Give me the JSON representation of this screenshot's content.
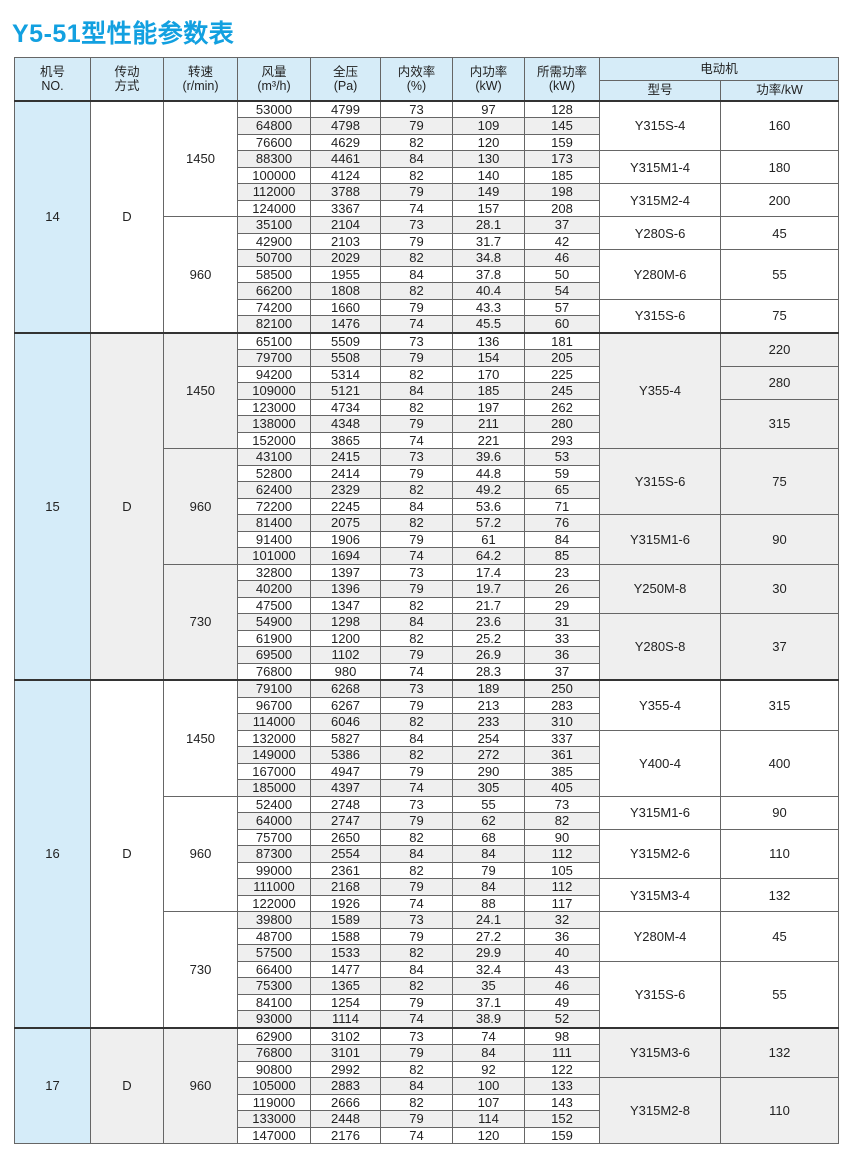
{
  "title": "Y5-51型性能参数表",
  "header": {
    "no": [
      "机号",
      "NO."
    ],
    "drive": [
      "传动",
      "方式"
    ],
    "speed": [
      "转速",
      "(r/min)"
    ],
    "flow": [
      "风量",
      "(m³/h)"
    ],
    "pressure": [
      "全压",
      "(Pa)"
    ],
    "efficiency": [
      "内效率",
      "(%)"
    ],
    "inner_power": [
      "内功率",
      "(kW)"
    ],
    "required_power": [
      "所需功率",
      "(kW)"
    ],
    "motor": "电动机",
    "motor_model": "型号",
    "motor_power": "功率/kW"
  },
  "groups": [
    {
      "no": "14",
      "drive": "D",
      "speeds": [
        {
          "speed": "1450",
          "rows": [
            [
              "53000",
              "4799",
              "73",
              "97",
              "128"
            ],
            [
              "64800",
              "4798",
              "79",
              "109",
              "145"
            ],
            [
              "76600",
              "4629",
              "82",
              "120",
              "159"
            ],
            [
              "88300",
              "4461",
              "84",
              "130",
              "173"
            ],
            [
              "100000",
              "4124",
              "82",
              "140",
              "185"
            ],
            [
              "112000",
              "3788",
              "79",
              "149",
              "198"
            ],
            [
              "124000",
              "3367",
              "74",
              "157",
              "208"
            ]
          ],
          "models": [
            {
              "model": "Y315S-4",
              "span": 3
            },
            {
              "model": "Y315M1-4",
              "span": 2
            },
            {
              "model": "Y315M2-4",
              "span": 2
            }
          ],
          "powers": [
            {
              "power": "160",
              "span": 3
            },
            {
              "power": "180",
              "span": 2
            },
            {
              "power": "200",
              "span": 2
            }
          ]
        },
        {
          "speed": "960",
          "rows": [
            [
              "35100",
              "2104",
              "73",
              "28.1",
              "37"
            ],
            [
              "42900",
              "2103",
              "79",
              "31.7",
              "42"
            ],
            [
              "50700",
              "2029",
              "82",
              "34.8",
              "46"
            ],
            [
              "58500",
              "1955",
              "84",
              "37.8",
              "50"
            ],
            [
              "66200",
              "1808",
              "82",
              "40.4",
              "54"
            ],
            [
              "74200",
              "1660",
              "79",
              "43.3",
              "57"
            ],
            [
              "82100",
              "1476",
              "74",
              "45.5",
              "60"
            ]
          ],
          "models": [
            {
              "model": "Y280S-6",
              "span": 2
            },
            {
              "model": "Y280M-6",
              "span": 3
            },
            {
              "model": "Y315S-6",
              "span": 2
            }
          ],
          "powers": [
            {
              "power": "45",
              "span": 2
            },
            {
              "power": "55",
              "span": 3
            },
            {
              "power": "75",
              "span": 2
            }
          ]
        }
      ]
    },
    {
      "no": "15",
      "drive": "D",
      "speeds": [
        {
          "speed": "1450",
          "rows": [
            [
              "65100",
              "5509",
              "73",
              "136",
              "181"
            ],
            [
              "79700",
              "5508",
              "79",
              "154",
              "205"
            ],
            [
              "94200",
              "5314",
              "82",
              "170",
              "225"
            ],
            [
              "109000",
              "5121",
              "84",
              "185",
              "245"
            ],
            [
              "123000",
              "4734",
              "82",
              "197",
              "262"
            ],
            [
              "138000",
              "4348",
              "79",
              "211",
              "280"
            ],
            [
              "152000",
              "3865",
              "74",
              "221",
              "293"
            ]
          ],
          "models": [
            {
              "model": "Y355-4",
              "span": 7
            }
          ],
          "powers": [
            {
              "power": "220",
              "span": 2
            },
            {
              "power": "280",
              "span": 2
            },
            {
              "power": "315",
              "span": 3
            }
          ]
        },
        {
          "speed": "960",
          "rows": [
            [
              "43100",
              "2415",
              "73",
              "39.6",
              "53"
            ],
            [
              "52800",
              "2414",
              "79",
              "44.8",
              "59"
            ],
            [
              "62400",
              "2329",
              "82",
              "49.2",
              "65"
            ],
            [
              "72200",
              "2245",
              "84",
              "53.6",
              "71"
            ],
            [
              "81400",
              "2075",
              "82",
              "57.2",
              "76"
            ],
            [
              "91400",
              "1906",
              "79",
              "61",
              "84"
            ],
            [
              "101000",
              "1694",
              "74",
              "64.2",
              "85"
            ]
          ],
          "models": [
            {
              "model": "Y315S-6",
              "span": 4
            },
            {
              "model": "Y315M1-6",
              "span": 3
            }
          ],
          "powers": [
            {
              "power": "75",
              "span": 4
            },
            {
              "power": "90",
              "span": 3
            }
          ]
        },
        {
          "speed": "730",
          "rows": [
            [
              "32800",
              "1397",
              "73",
              "17.4",
              "23"
            ],
            [
              "40200",
              "1396",
              "79",
              "19.7",
              "26"
            ],
            [
              "47500",
              "1347",
              "82",
              "21.7",
              "29"
            ],
            [
              "54900",
              "1298",
              "84",
              "23.6",
              "31"
            ],
            [
              "61900",
              "1200",
              "82",
              "25.2",
              "33"
            ],
            [
              "69500",
              "1102",
              "79",
              "26.9",
              "36"
            ],
            [
              "76800",
              "980",
              "74",
              "28.3",
              "37"
            ]
          ],
          "models": [
            {
              "model": "Y250M-8",
              "span": 3
            },
            {
              "model": "Y280S-8",
              "span": 4
            }
          ],
          "powers": [
            {
              "power": "30",
              "span": 3
            },
            {
              "power": "37",
              "span": 4
            }
          ]
        }
      ]
    },
    {
      "no": "16",
      "drive": "D",
      "speeds": [
        {
          "speed": "1450",
          "rows": [
            [
              "79100",
              "6268",
              "73",
              "189",
              "250"
            ],
            [
              "96700",
              "6267",
              "79",
              "213",
              "283"
            ],
            [
              "114000",
              "6046",
              "82",
              "233",
              "310"
            ],
            [
              "132000",
              "5827",
              "84",
              "254",
              "337"
            ],
            [
              "149000",
              "5386",
              "82",
              "272",
              "361"
            ],
            [
              "167000",
              "4947",
              "79",
              "290",
              "385"
            ],
            [
              "185000",
              "4397",
              "74",
              "305",
              "405"
            ]
          ],
          "models": [
            {
              "model": "Y355-4",
              "span": 3
            },
            {
              "model": "Y400-4",
              "span": 4
            }
          ],
          "powers": [
            {
              "power": "315",
              "span": 3
            },
            {
              "power": "400",
              "span": 4
            }
          ]
        },
        {
          "speed": "960",
          "rows": [
            [
              "52400",
              "2748",
              "73",
              "55",
              "73"
            ],
            [
              "64000",
              "2747",
              "79",
              "62",
              "82"
            ],
            [
              "75700",
              "2650",
              "82",
              "68",
              "90"
            ],
            [
              "87300",
              "2554",
              "84",
              "84",
              "112"
            ],
            [
              "99000",
              "2361",
              "82",
              "79",
              "105"
            ],
            [
              "111000",
              "2168",
              "79",
              "84",
              "112"
            ],
            [
              "122000",
              "1926",
              "74",
              "88",
              "117"
            ]
          ],
          "models": [
            {
              "model": "Y315M1-6",
              "span": 2
            },
            {
              "model": "Y315M2-6",
              "span": 3
            },
            {
              "model": "Y315M3-4",
              "span": 2
            }
          ],
          "powers": [
            {
              "power": "90",
              "span": 2
            },
            {
              "power": "110",
              "span": 3
            },
            {
              "power": "132",
              "span": 2
            }
          ]
        },
        {
          "speed": "730",
          "rows": [
            [
              "39800",
              "1589",
              "73",
              "24.1",
              "32"
            ],
            [
              "48700",
              "1588",
              "79",
              "27.2",
              "36"
            ],
            [
              "57500",
              "1533",
              "82",
              "29.9",
              "40"
            ],
            [
              "66400",
              "1477",
              "84",
              "32.4",
              "43"
            ],
            [
              "75300",
              "1365",
              "82",
              "35",
              "46"
            ],
            [
              "84100",
              "1254",
              "79",
              "37.1",
              "49"
            ],
            [
              "93000",
              "1114",
              "74",
              "38.9",
              "52"
            ]
          ],
          "models": [
            {
              "model": "Y280M-4",
              "span": 3
            },
            {
              "model": "Y315S-6",
              "span": 4
            }
          ],
          "powers": [
            {
              "power": "45",
              "span": 3
            },
            {
              "power": "55",
              "span": 4
            }
          ]
        }
      ]
    },
    {
      "no": "17",
      "drive": "D",
      "speeds": [
        {
          "speed": "960",
          "rows": [
            [
              "62900",
              "3102",
              "73",
              "74",
              "98"
            ],
            [
              "76800",
              "3101",
              "79",
              "84",
              "111"
            ],
            [
              "90800",
              "2992",
              "82",
              "92",
              "122"
            ],
            [
              "105000",
              "2883",
              "84",
              "100",
              "133"
            ],
            [
              "119000",
              "2666",
              "82",
              "107",
              "143"
            ],
            [
              "133000",
              "2448",
              "79",
              "114",
              "152"
            ],
            [
              "147000",
              "2176",
              "74",
              "120",
              "159"
            ]
          ],
          "models": [
            {
              "model": "Y315M3-6",
              "span": 3
            },
            {
              "model": "Y315M2-8",
              "span": 4
            }
          ],
          "powers": [
            {
              "power": "132",
              "span": 3
            },
            {
              "power": "110",
              "span": 4
            }
          ]
        }
      ]
    }
  ]
}
